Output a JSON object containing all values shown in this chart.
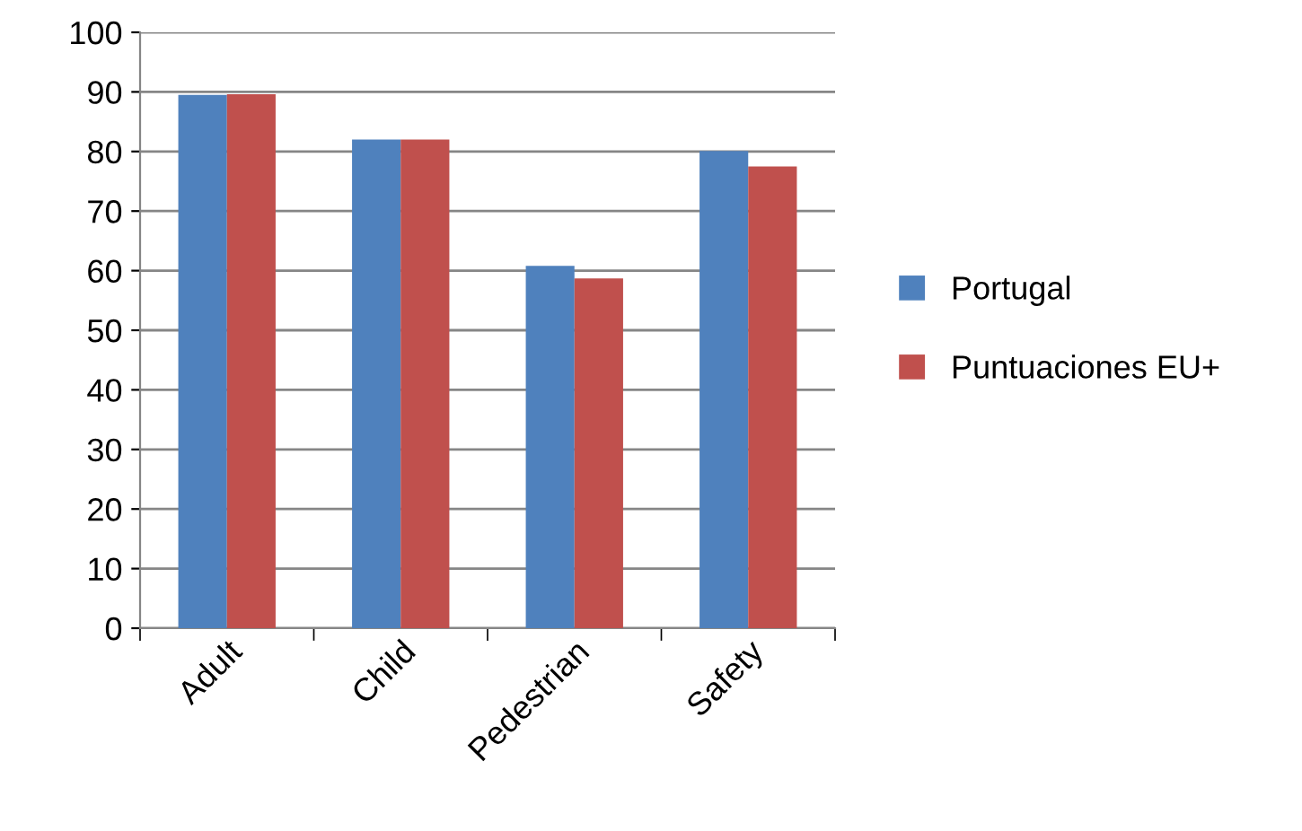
{
  "chart_data": {
    "type": "bar",
    "categories": [
      "Adult",
      "Child",
      "Pedestrian",
      "Safety"
    ],
    "series": [
      {
        "name": "Portugal",
        "color": "#4f81bd",
        "values": [
          89.5,
          82,
          60.8,
          80.1
        ]
      },
      {
        "name": "Puntuaciones EU+",
        "color": "#c0504d",
        "values": [
          89.6,
          82,
          58.7,
          77.5
        ]
      }
    ],
    "ylim": [
      0,
      100
    ],
    "yticks": [
      0,
      10,
      20,
      30,
      40,
      50,
      60,
      70,
      80,
      90,
      100
    ],
    "grid": "y",
    "legend": "right"
  }
}
